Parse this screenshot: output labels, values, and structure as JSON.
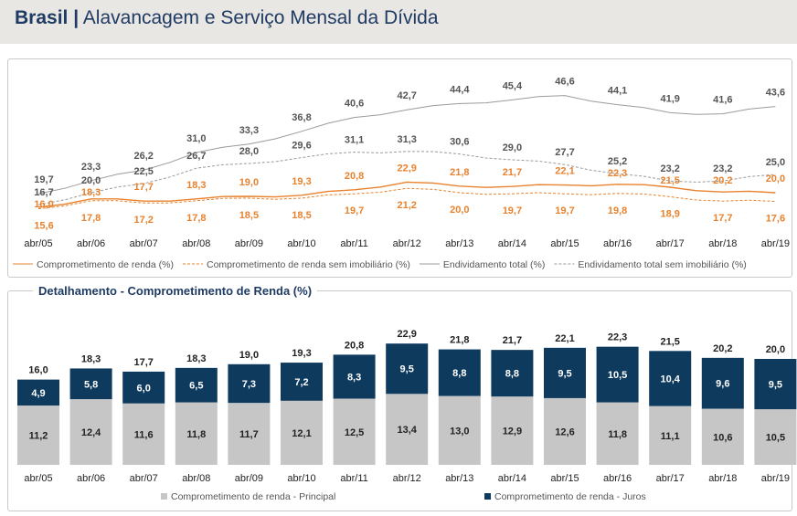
{
  "header": {
    "brand": "Brasil",
    "separator": "|",
    "title": "Alavancagem e Serviço Mensal da Dívida"
  },
  "colors": {
    "orange": "#e8822e",
    "gray": "#9b9b9b",
    "navy": "#0e3a5e",
    "light": "#c6c6c6",
    "title": "#1f3b63"
  },
  "chart_data": [
    {
      "type": "line",
      "title": "",
      "categories": [
        "abr/05",
        "abr/06",
        "abr/07",
        "abr/08",
        "abr/09",
        "abr/10",
        "abr/11",
        "abr/12",
        "abr/13",
        "abr/14",
        "abr/15",
        "abr/16",
        "abr/17",
        "abr/18",
        "abr/19"
      ],
      "series": [
        {
          "name": "Comprometimento de renda (%)",
          "values": [
            16.0,
            18.3,
            17.7,
            18.3,
            19.0,
            19.3,
            20.8,
            22.9,
            21.8,
            21.7,
            22.1,
            22.3,
            21.5,
            20.2,
            20.0
          ]
        },
        {
          "name": "Comprometimento de renda sem imobiliário (%)",
          "values": [
            15.6,
            17.8,
            17.2,
            17.8,
            18.5,
            18.5,
            19.7,
            21.2,
            20.0,
            19.7,
            19.7,
            19.8,
            18.9,
            17.7,
            17.6
          ]
        },
        {
          "name": "Endividamento total (%)",
          "values": [
            19.7,
            23.3,
            26.2,
            31.0,
            33.3,
            36.8,
            40.6,
            42.7,
            44.4,
            45.4,
            46.6,
            44.1,
            41.9,
            41.6,
            43.6
          ]
        },
        {
          "name": "Endividamento total sem imobiliário (%)",
          "values": [
            16.7,
            20.0,
            22.5,
            26.7,
            28.0,
            29.6,
            31.1,
            31.3,
            30.6,
            29.0,
            27.7,
            25.2,
            23.2,
            23.2,
            25.0
          ]
        }
      ],
      "legend": "bottom"
    },
    {
      "type": "bar",
      "title": "Detalhamento - Comprometimento de Renda (%)",
      "categories": [
        "abr/05",
        "abr/06",
        "abr/07",
        "abr/08",
        "abr/09",
        "abr/10",
        "abr/11",
        "abr/12",
        "abr/13",
        "abr/14",
        "abr/15",
        "abr/16",
        "abr/17",
        "abr/18",
        "abr/19"
      ],
      "totals": [
        "16,0",
        "18,3",
        "17,7",
        "18,3",
        "19,0",
        "19,3",
        "20,8",
        "22,9",
        "21,8",
        "21,7",
        "22,1",
        "22,3",
        "21,5",
        "20,2",
        "20,0"
      ],
      "series": [
        {
          "name": "Comprometimento de renda - Principal",
          "values": [
            11.2,
            12.4,
            11.6,
            11.8,
            11.7,
            12.1,
            12.5,
            13.4,
            13.0,
            12.9,
            12.6,
            11.8,
            11.1,
            10.6,
            10.5
          ]
        },
        {
          "name": "Comprometimento de renda - Juros",
          "values": [
            4.9,
            5.8,
            6.0,
            6.5,
            7.3,
            7.2,
            8.3,
            9.5,
            8.8,
            8.8,
            9.5,
            10.5,
            10.4,
            9.6,
            9.5
          ]
        }
      ],
      "stacked": true,
      "legend": "bottom"
    }
  ]
}
